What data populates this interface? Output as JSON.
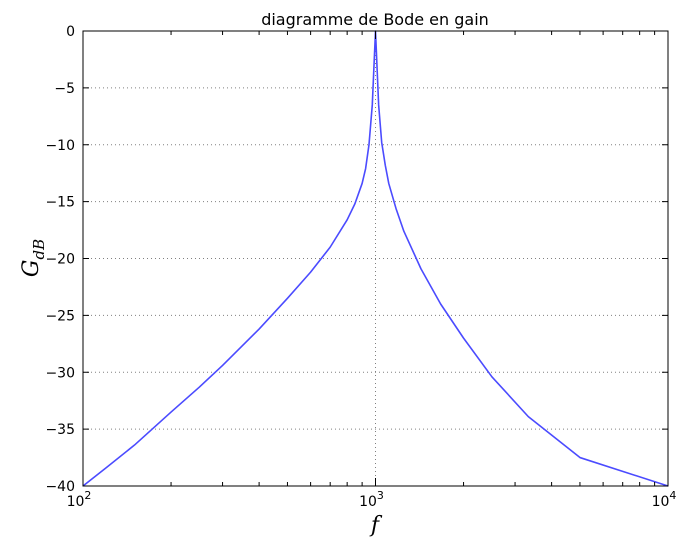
{
  "chart_data": {
    "type": "line",
    "title": "diagramme de Bode en gain",
    "xlabel": "f",
    "ylabel": {
      "main": "G",
      "sub": "dB"
    },
    "xscale": "log",
    "xlim": [
      100,
      10000
    ],
    "ylim": [
      -40,
      0
    ],
    "grid": true,
    "legend": "none",
    "x_ticks": [
      {
        "value": 100,
        "base": "10",
        "exp": "2"
      },
      {
        "value": 1000,
        "base": "10",
        "exp": "3"
      },
      {
        "value": 10000,
        "base": "10",
        "exp": "4"
      }
    ],
    "y_ticks": [
      "0",
      "−5",
      "−10",
      "−15",
      "−20",
      "−25",
      "−30",
      "−35",
      "−40"
    ],
    "y_tick_values": [
      0,
      -5,
      -10,
      -15,
      -20,
      -25,
      -30,
      -35,
      -40
    ],
    "series": [
      {
        "color": "#4b4bff",
        "x": [
          100,
          120,
          150,
          200,
          250,
          300,
          400,
          500,
          600,
          700,
          800,
          850,
          900,
          925,
          950,
          975,
          1000,
          1025,
          1050,
          1080,
          1110,
          1175,
          1250,
          1430,
          1670,
          2000,
          2500,
          3330,
          5000,
          10000
        ],
        "y": [
          -40,
          -38.4,
          -36.4,
          -33.5,
          -31.3,
          -29.4,
          -26.2,
          -23.5,
          -21.2,
          -19.0,
          -16.6,
          -15.2,
          -13.4,
          -12.1,
          -10.0,
          -6.5,
          0,
          -6.5,
          -9.8,
          -11.8,
          -13.4,
          -15.6,
          -17.6,
          -20.9,
          -24.0,
          -27.0,
          -30.4,
          -33.9,
          -37.5,
          -40
        ]
      }
    ]
  }
}
